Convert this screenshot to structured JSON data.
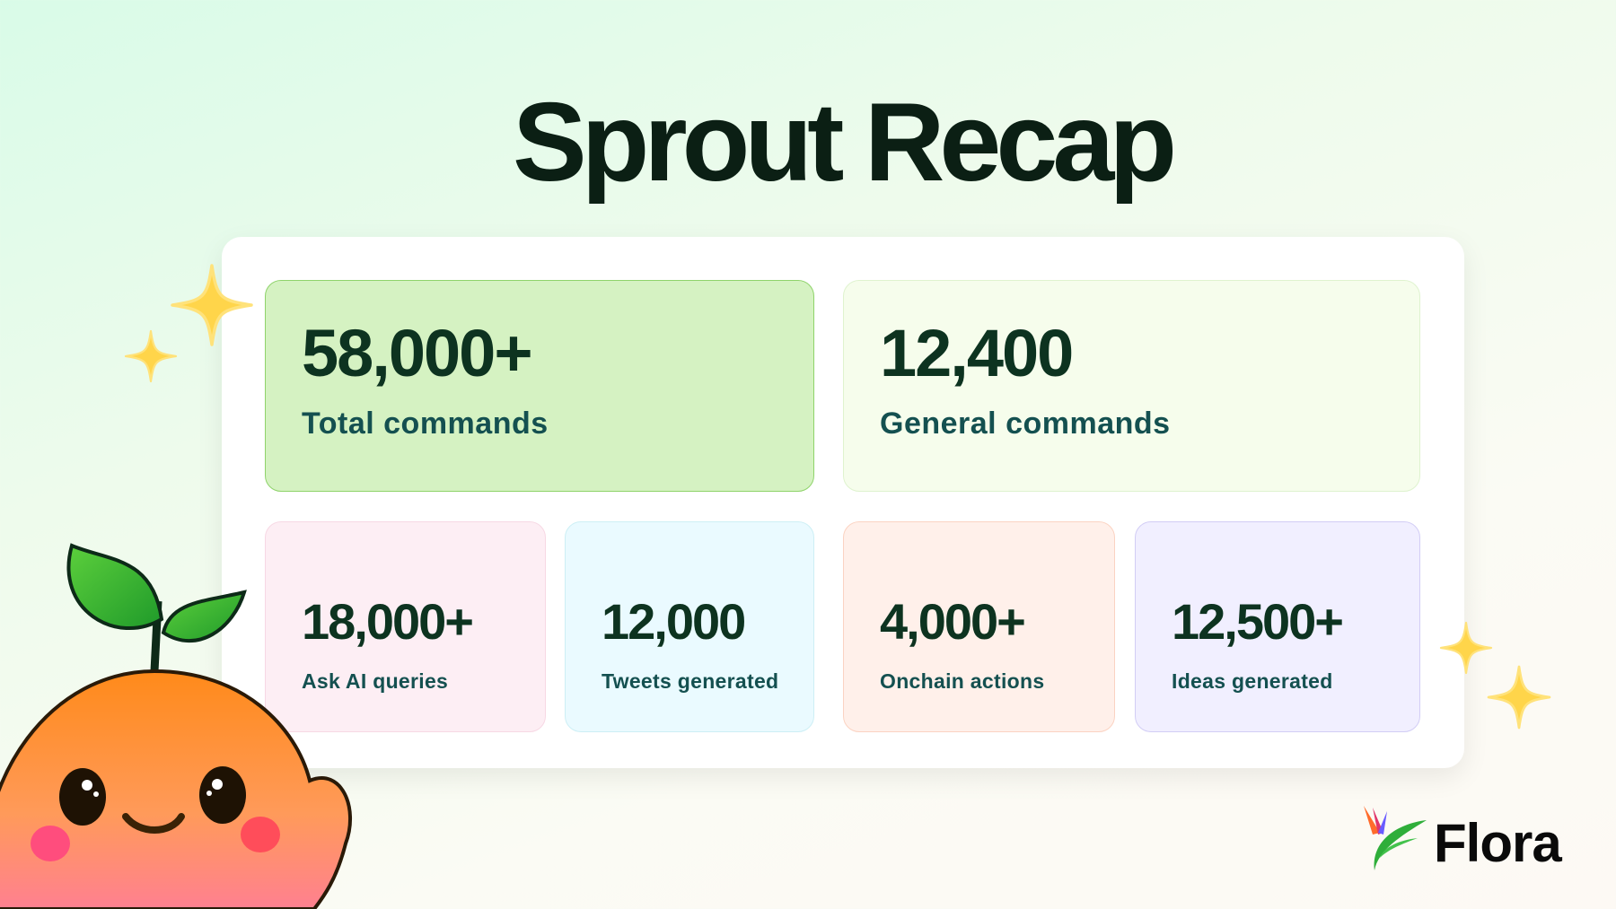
{
  "title": "Sprout Recap",
  "stats_top": [
    {
      "value": "58,000+",
      "label": "Total commands",
      "bg": "#d5f2c2",
      "border": "#8fd36b"
    },
    {
      "value": "12,400",
      "label": "General commands",
      "bg": "#f6fdec",
      "border": "#dff3cf"
    }
  ],
  "stats_bottom": [
    {
      "value": "18,000+",
      "label": "Ask AI queries",
      "bg": "#fdeef4",
      "border": "#f7d8e4"
    },
    {
      "value": "12,000",
      "label": "Tweets generated",
      "bg": "#eafaff",
      "border": "#cdeff5"
    },
    {
      "value": "4,000+",
      "label": "Onchain actions",
      "bg": "#fff0ea",
      "border": "#fbd3c2"
    },
    {
      "value": "12,500+",
      "label": "Ideas generated",
      "bg": "#f1efff",
      "border": "#d2cdf5"
    }
  ],
  "brand": {
    "name": "Flora"
  }
}
